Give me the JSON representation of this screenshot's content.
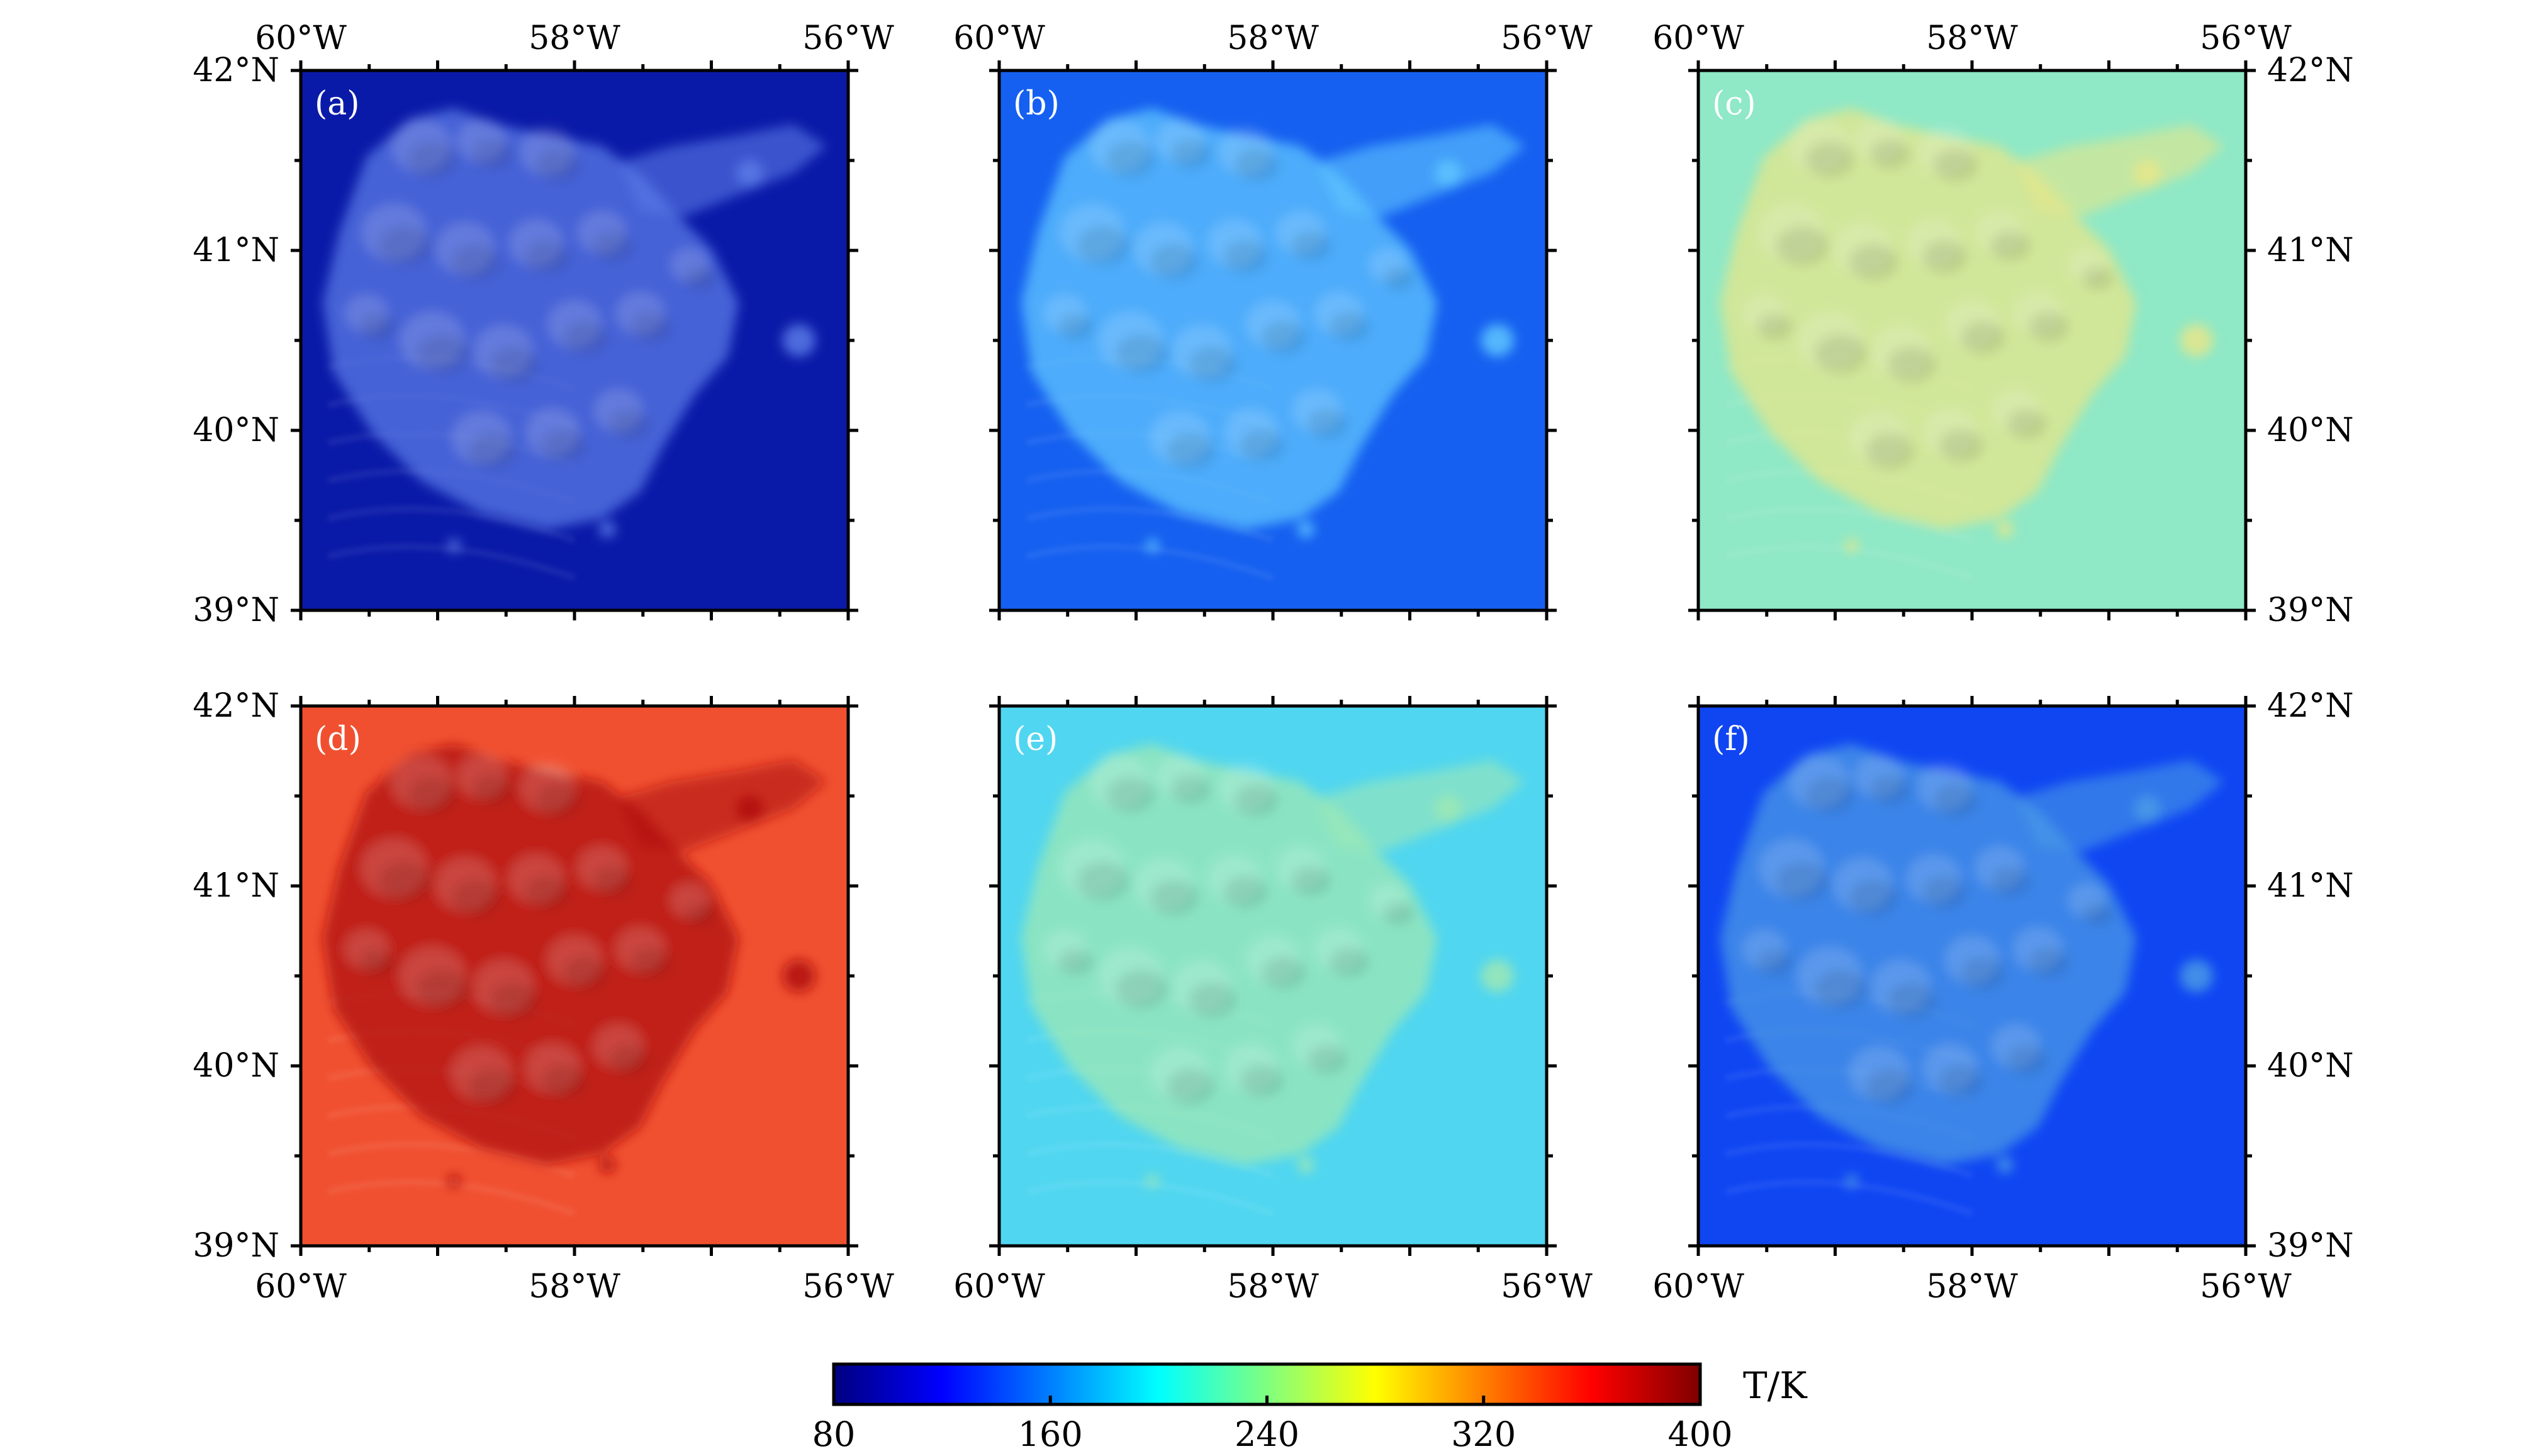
{
  "chart_data": {
    "type": "heatmap",
    "variable_label": "T/K",
    "colorbar": {
      "min": 80,
      "max": 400,
      "ticks": [
        "80",
        "160",
        "240",
        "320",
        "400"
      ],
      "colormap": "jet",
      "colors": [
        "#00007f",
        "#0000ff",
        "#007fff",
        "#00ffff",
        "#7fff7f",
        "#ffff00",
        "#ff7f00",
        "#ff0000",
        "#7f0000"
      ]
    },
    "axes": {
      "x_range": [
        -60,
        -56
      ],
      "y_range": [
        39,
        42
      ],
      "x_ticks": [
        "60°W",
        "58°W",
        "56°W"
      ],
      "y_ticks": [
        "42°N",
        "41°N",
        "40°N",
        "39°N"
      ]
    },
    "panels": [
      {
        "label": "(a)",
        "background_T": 90,
        "feature_T": 135,
        "base_color": "#0a1aa8",
        "feature_color": "#5a7ae6"
      },
      {
        "label": "(b)",
        "background_T": 150,
        "feature_T": 190,
        "base_color": "#1560f0",
        "feature_color": "#5fc6ff"
      },
      {
        "label": "(c)",
        "background_T": 240,
        "feature_T": 275,
        "base_color": "#8fe8c6",
        "feature_color": "#e6e68a"
      },
      {
        "label": "(d)",
        "background_T": 345,
        "feature_T": 385,
        "base_color": "#f05030",
        "feature_color": "#b01010"
      },
      {
        "label": "(e)",
        "background_T": 215,
        "feature_T": 240,
        "base_color": "#50d6f0",
        "feature_color": "#9ee8b4"
      },
      {
        "label": "(f)",
        "background_T": 140,
        "feature_T": 175,
        "base_color": "#0f46f2",
        "feature_color": "#4a9ae6"
      }
    ]
  }
}
